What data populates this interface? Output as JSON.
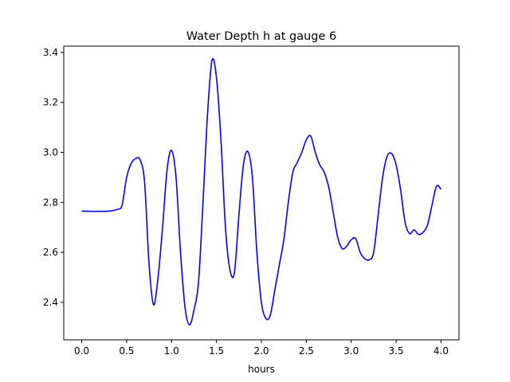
{
  "chart_data": {
    "type": "line",
    "title": "Water Depth h at gauge 6",
    "xlabel": "hours",
    "ylabel": "",
    "xlim": [
      -0.2,
      4.2
    ],
    "ylim": [
      2.25,
      3.425
    ],
    "grid": false,
    "xticks": [
      0.0,
      0.5,
      1.0,
      1.5,
      2.0,
      2.5,
      3.0,
      3.5,
      4.0
    ],
    "xtick_labels": [
      "0.0",
      "0.5",
      "1.0",
      "1.5",
      "2.0",
      "2.5",
      "3.0",
      "3.5",
      "4.0"
    ],
    "yticks": [
      2.4,
      2.6,
      2.8,
      3.0,
      3.2,
      3.4
    ],
    "ytick_labels": [
      "2.4",
      "2.6",
      "2.8",
      "3.0",
      "3.2",
      "3.4"
    ],
    "series": [
      {
        "color": "#0000ff",
        "points": [
          [
            0.0,
            2.765
          ],
          [
            0.1,
            2.764
          ],
          [
            0.2,
            2.764
          ],
          [
            0.3,
            2.765
          ],
          [
            0.4,
            2.772
          ],
          [
            0.45,
            2.79
          ],
          [
            0.5,
            2.9
          ],
          [
            0.55,
            2.955
          ],
          [
            0.6,
            2.975
          ],
          [
            0.65,
            2.97
          ],
          [
            0.7,
            2.88
          ],
          [
            0.75,
            2.55
          ],
          [
            0.8,
            2.39
          ],
          [
            0.85,
            2.5
          ],
          [
            0.9,
            2.7
          ],
          [
            0.95,
            2.93
          ],
          [
            1.0,
            3.008
          ],
          [
            1.05,
            2.9
          ],
          [
            1.1,
            2.6
          ],
          [
            1.15,
            2.38
          ],
          [
            1.2,
            2.31
          ],
          [
            1.25,
            2.37
          ],
          [
            1.3,
            2.48
          ],
          [
            1.35,
            2.8
          ],
          [
            1.4,
            3.15
          ],
          [
            1.45,
            3.367
          ],
          [
            1.5,
            3.3
          ],
          [
            1.55,
            3.05
          ],
          [
            1.6,
            2.7
          ],
          [
            1.65,
            2.53
          ],
          [
            1.7,
            2.52
          ],
          [
            1.75,
            2.75
          ],
          [
            1.8,
            2.95
          ],
          [
            1.85,
            3.003
          ],
          [
            1.9,
            2.9
          ],
          [
            1.95,
            2.6
          ],
          [
            2.0,
            2.4
          ],
          [
            2.05,
            2.335
          ],
          [
            2.1,
            2.35
          ],
          [
            2.15,
            2.45
          ],
          [
            2.2,
            2.55
          ],
          [
            2.25,
            2.65
          ],
          [
            2.3,
            2.8
          ],
          [
            2.35,
            2.92
          ],
          [
            2.4,
            2.96
          ],
          [
            2.45,
            3.0
          ],
          [
            2.5,
            3.05
          ],
          [
            2.55,
            3.065
          ],
          [
            2.6,
            3.0
          ],
          [
            2.65,
            2.95
          ],
          [
            2.7,
            2.92
          ],
          [
            2.75,
            2.86
          ],
          [
            2.8,
            2.76
          ],
          [
            2.85,
            2.66
          ],
          [
            2.9,
            2.615
          ],
          [
            2.95,
            2.625
          ],
          [
            3.0,
            2.65
          ],
          [
            3.05,
            2.655
          ],
          [
            3.1,
            2.6
          ],
          [
            3.15,
            2.575
          ],
          [
            3.2,
            2.57
          ],
          [
            3.25,
            2.6
          ],
          [
            3.3,
            2.75
          ],
          [
            3.35,
            2.9
          ],
          [
            3.4,
            2.985
          ],
          [
            3.45,
            2.995
          ],
          [
            3.5,
            2.95
          ],
          [
            3.55,
            2.85
          ],
          [
            3.6,
            2.72
          ],
          [
            3.65,
            2.675
          ],
          [
            3.7,
            2.69
          ],
          [
            3.75,
            2.672
          ],
          [
            3.8,
            2.68
          ],
          [
            3.85,
            2.71
          ],
          [
            3.9,
            2.79
          ],
          [
            3.95,
            2.865
          ],
          [
            4.0,
            2.852
          ]
        ]
      }
    ]
  }
}
